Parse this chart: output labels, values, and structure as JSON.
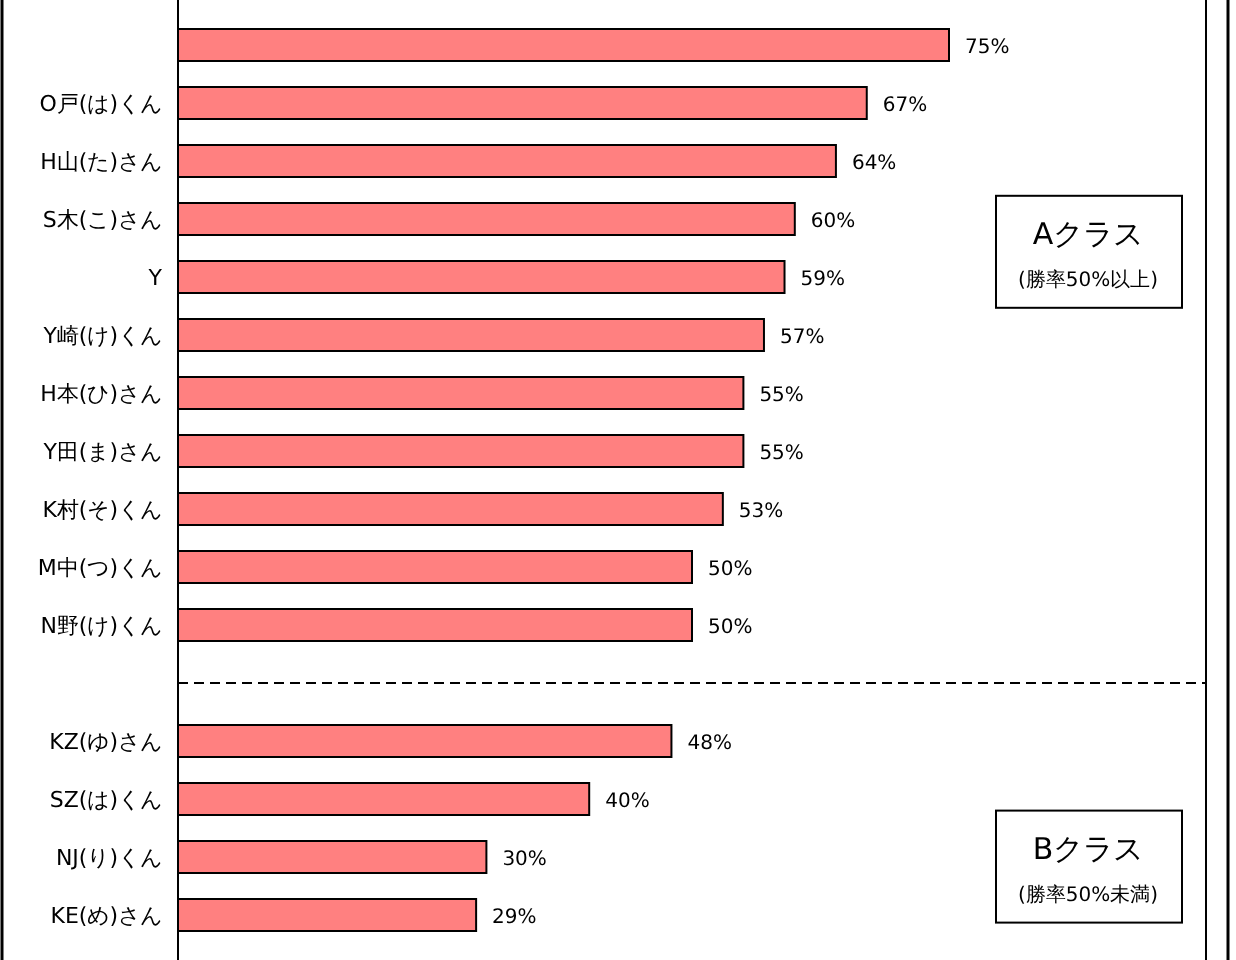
{
  "chart_data": {
    "type": "bar",
    "orientation": "horizontal",
    "color": "#ff8080",
    "categories": [
      null,
      "O戸(は)くん",
      "H山(た)さん",
      "S木(こ)さん",
      "Y",
      "Y崎(け)くん",
      "H本(ひ)さん",
      "Y田(ま)さん",
      "K村(そ)くん",
      "M中(つ)くん",
      "N野(け)くん",
      null,
      "KZ(ゆ)さん",
      "SZ(は)くん",
      "NJ(り)くん",
      "KE(め)さん"
    ],
    "values": [
      75,
      67,
      64,
      60,
      59,
      57,
      55,
      55,
      53,
      50,
      50,
      null,
      48,
      40,
      30,
      29
    ],
    "value_labels": [
      "75%",
      "67%",
      "64%",
      "60%",
      "59%",
      "57%",
      "55%",
      "55%",
      "53%",
      "50%",
      "50%",
      null,
      "48%",
      "40%",
      "30%",
      "29%"
    ],
    "annotations": [
      "Aクラス",
      "(勝率50%以上)",
      "Bクラス",
      "(勝率50%未満)"
    ]
  }
}
